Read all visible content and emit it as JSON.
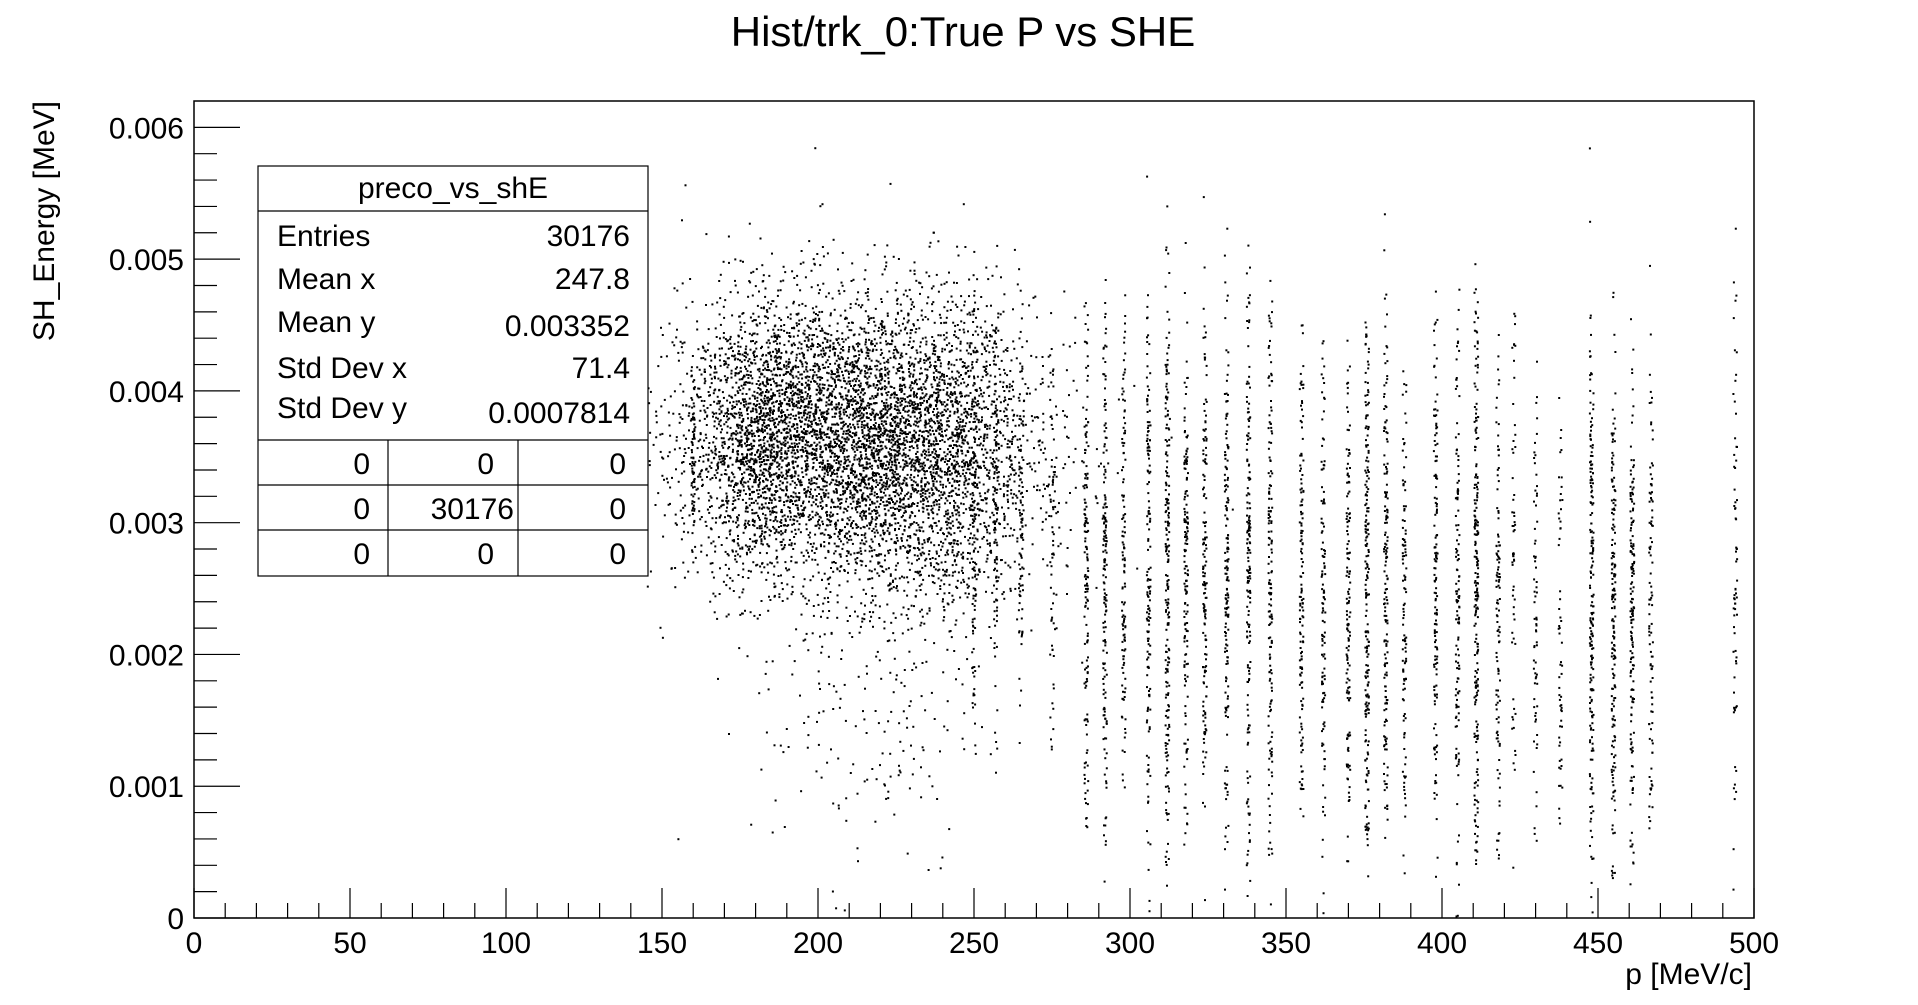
{
  "chart_data": {
    "type": "scatter",
    "title": "Hist/trk_0:True P vs SHE",
    "xlabel": "p [MeV/c]",
    "ylabel": "SH_Energy [MeV]",
    "xlim": [
      0,
      500
    ],
    "ylim": [
      0,
      0.0062
    ],
    "x_ticks": [
      0,
      50,
      100,
      150,
      200,
      250,
      300,
      350,
      400,
      450,
      500
    ],
    "x_tick_labels": [
      "0",
      "50",
      "100",
      "150",
      "200",
      "250",
      "300",
      "350",
      "400",
      "450",
      "500"
    ],
    "y_ticks": [
      0,
      0.001,
      0.002,
      0.003,
      0.004,
      0.005,
      0.006
    ],
    "y_tick_labels": [
      "0",
      "0.001",
      "0.002",
      "0.003",
      "0.004",
      "0.005",
      "0.006"
    ],
    "grid": false,
    "marker_color": "#000000",
    "clusters": [
      {
        "x_center": 213,
        "x_spread": 28,
        "y_center": 0.0036,
        "y_spread": 0.00055,
        "n": 5200
      },
      {
        "x_center": 180,
        "x_spread": 10,
        "y_center": 0.0037,
        "y_spread": 0.0005,
        "n": 900
      },
      {
        "x_center": 240,
        "x_spread": 12,
        "y_center": 0.0034,
        "y_spread": 0.0007,
        "n": 700
      },
      {
        "x_center": 215,
        "x_spread": 18,
        "y_center": 0.0015,
        "y_spread": 0.0006,
        "n": 160
      }
    ],
    "columns": [
      {
        "x": 160,
        "y_range": [
          0.0028,
          0.0042
        ],
        "n": 60
      },
      {
        "x": 250,
        "y_range": [
          0.0012,
          0.0045
        ],
        "n": 90
      },
      {
        "x": 257,
        "y_range": [
          0.0014,
          0.0045
        ],
        "n": 90
      },
      {
        "x": 265,
        "y_range": [
          0.0016,
          0.0044
        ],
        "n": 80
      },
      {
        "x": 275,
        "y_range": [
          0.0012,
          0.0044
        ],
        "n": 60
      },
      {
        "x": 286,
        "y_range": [
          0.0005,
          0.0046
        ],
        "n": 140
      },
      {
        "x": 292,
        "y_range": [
          0.0005,
          0.0046
        ],
        "n": 160
      },
      {
        "x": 298,
        "y_range": [
          0.0008,
          0.0046
        ],
        "n": 120
      },
      {
        "x": 306,
        "y_range": [
          0.0004,
          0.0047
        ],
        "n": 150
      },
      {
        "x": 312,
        "y_range": [
          0.0004,
          0.0049
        ],
        "n": 200
      },
      {
        "x": 318,
        "y_range": [
          0.0006,
          0.0047
        ],
        "n": 150
      },
      {
        "x": 324,
        "y_range": [
          0.0006,
          0.0046
        ],
        "n": 150
      },
      {
        "x": 331,
        "y_range": [
          0.0004,
          0.0047
        ],
        "n": 160
      },
      {
        "x": 338,
        "y_range": [
          0.0004,
          0.0048
        ],
        "n": 170
      },
      {
        "x": 345,
        "y_range": [
          0.0004,
          0.0046
        ],
        "n": 160
      },
      {
        "x": 355,
        "y_range": [
          0.0006,
          0.0045
        ],
        "n": 140
      },
      {
        "x": 362,
        "y_range": [
          0.0003,
          0.0044
        ],
        "n": 120
      },
      {
        "x": 370,
        "y_range": [
          0.0004,
          0.0043
        ],
        "n": 140
      },
      {
        "x": 376,
        "y_range": [
          0.0005,
          0.0047
        ],
        "n": 200
      },
      {
        "x": 382,
        "y_range": [
          0.0006,
          0.0048
        ],
        "n": 160
      },
      {
        "x": 388,
        "y_range": [
          0.0006,
          0.0042
        ],
        "n": 110
      },
      {
        "x": 398,
        "y_range": [
          0.0004,
          0.0046
        ],
        "n": 140
      },
      {
        "x": 405,
        "y_range": [
          0.0004,
          0.0044
        ],
        "n": 130
      },
      {
        "x": 411,
        "y_range": [
          0.0003,
          0.0047
        ],
        "n": 220
      },
      {
        "x": 418,
        "y_range": [
          0.0004,
          0.0042
        ],
        "n": 110
      },
      {
        "x": 423,
        "y_range": [
          0.0006,
          0.0046
        ],
        "n": 60
      },
      {
        "x": 430,
        "y_range": [
          0.0004,
          0.0041
        ],
        "n": 70
      },
      {
        "x": 438,
        "y_range": [
          0.0003,
          0.004
        ],
        "n": 60
      },
      {
        "x": 448,
        "y_range": [
          0.0003,
          0.0044
        ],
        "n": 200
      },
      {
        "x": 455,
        "y_range": [
          0.0003,
          0.0043
        ],
        "n": 180
      },
      {
        "x": 461,
        "y_range": [
          0.0003,
          0.0045
        ],
        "n": 160
      },
      {
        "x": 467,
        "y_range": [
          0.0002,
          0.0041
        ],
        "n": 100
      },
      {
        "x": 494,
        "y_range": [
          0.0004,
          0.0047
        ],
        "n": 70
      }
    ]
  },
  "stats_box": {
    "title": "preco_vs_shE",
    "rows": [
      {
        "label": "Entries",
        "value": "30176"
      },
      {
        "label": "Mean x",
        "value": "247.8"
      },
      {
        "label": "Mean y",
        "value": "0.003352"
      },
      {
        "label": "Std Dev x",
        "value": "71.4"
      },
      {
        "label": "Std Dev y",
        "value": "0.0007814"
      }
    ],
    "grid": [
      [
        "0",
        "0",
        "0"
      ],
      [
        "0",
        "30176",
        "0"
      ],
      [
        "0",
        "0",
        "0"
      ]
    ]
  }
}
